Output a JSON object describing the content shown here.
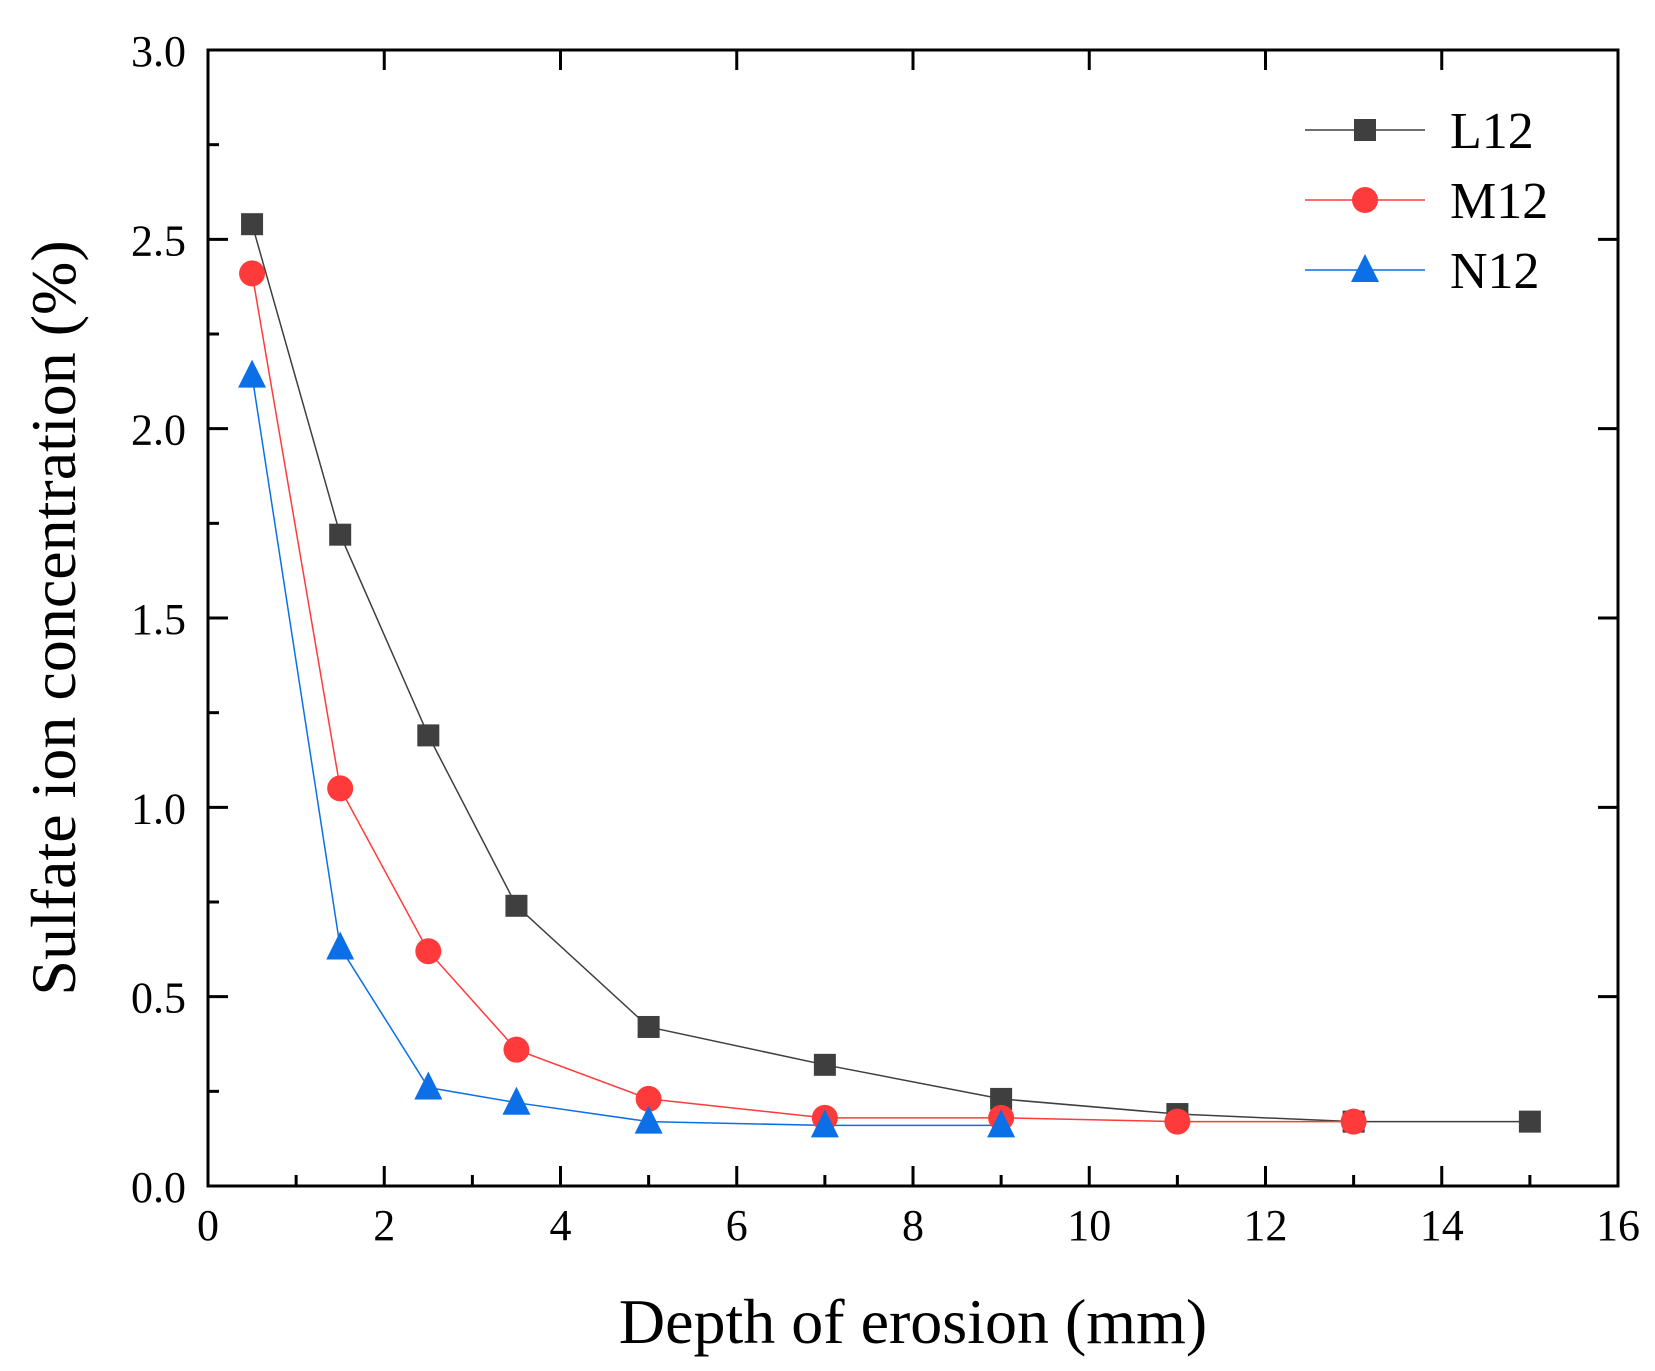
{
  "chart_data": {
    "type": "line",
    "title": "",
    "xlabel": "Depth of erosion (mm)",
    "ylabel": "Sulfate ion concentration (%)",
    "xlim": [
      0,
      16
    ],
    "ylim": [
      0,
      3.0
    ],
    "xticks": [
      "0",
      "2",
      "4",
      "6",
      "8",
      "10",
      "12",
      "14",
      "16"
    ],
    "yticks": [
      "0.0",
      "0.5",
      "1.0",
      "1.5",
      "2.0",
      "2.5",
      "3.0"
    ],
    "grid": false,
    "legend_position": "top-right",
    "series": [
      {
        "name": "L12",
        "marker": "square",
        "color": "#3f3f3f",
        "x": [
          0.5,
          1.5,
          2.5,
          3.5,
          5,
          7,
          9,
          11,
          13,
          15
        ],
        "y": [
          2.54,
          1.72,
          1.19,
          0.74,
          0.42,
          0.32,
          0.23,
          0.19,
          0.17,
          0.17
        ]
      },
      {
        "name": "M12",
        "marker": "circle",
        "color": "#ff3a3a",
        "x": [
          0.5,
          1.5,
          2.5,
          3.5,
          5,
          7,
          9,
          11,
          13
        ],
        "y": [
          2.41,
          1.05,
          0.62,
          0.36,
          0.23,
          0.18,
          0.18,
          0.17,
          0.17
        ]
      },
      {
        "name": "N12",
        "marker": "triangle",
        "color": "#0b6fe8",
        "x": [
          0.5,
          1.5,
          2.5,
          3.5,
          5,
          7,
          9
        ],
        "y": [
          2.14,
          0.63,
          0.26,
          0.22,
          0.17,
          0.16,
          0.16
        ]
      }
    ]
  }
}
